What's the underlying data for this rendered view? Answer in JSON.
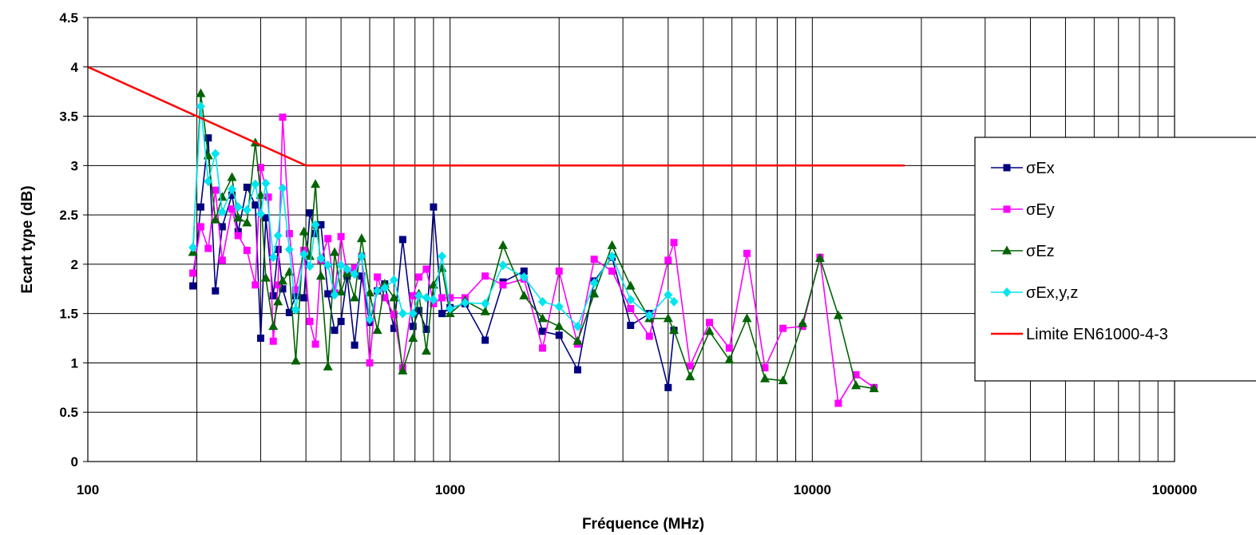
{
  "chart_data": {
    "type": "line",
    "title": "",
    "xlabel": "Fréquence (MHz)",
    "ylabel": "Ecart type (dB)",
    "x_scale": "log",
    "xlim": [
      100,
      100000
    ],
    "ylim": [
      0,
      4.5
    ],
    "x_ticks": [
      "100",
      "1000",
      "10000",
      "100000"
    ],
    "y_ticks": [
      "0",
      "0.5",
      "1",
      "1.5",
      "2",
      "2.5",
      "3",
      "3.5",
      "4",
      "4.5"
    ],
    "grid": true,
    "legend_position": "right",
    "series": [
      {
        "name": "σEx",
        "color": "#000080",
        "marker": "square",
        "x": [
          195,
          205,
          215,
          225,
          235,
          250,
          260,
          275,
          290,
          300,
          310,
          325,
          335,
          345,
          360,
          375,
          395,
          410,
          425,
          440,
          460,
          480,
          500,
          520,
          545,
          570,
          600,
          630,
          660,
          700,
          740,
          790,
          820,
          860,
          900,
          950,
          1000,
          1100,
          1250,
          1400,
          1600,
          1800,
          2000,
          2250,
          2500,
          2800,
          3150,
          3550,
          4000,
          4150
        ],
        "y": [
          1.78,
          2.58,
          3.28,
          1.73,
          2.38,
          2.7,
          2.33,
          2.78,
          2.6,
          1.25,
          2.47,
          1.68,
          2.15,
          1.75,
          1.51,
          1.68,
          1.66,
          2.52,
          2.31,
          2.4,
          1.7,
          1.33,
          1.42,
          1.88,
          1.18,
          1.88,
          1.41,
          1.73,
          1.8,
          1.35,
          2.25,
          1.37,
          1.53,
          1.34,
          2.58,
          1.5,
          1.56,
          1.6,
          1.23,
          1.82,
          1.93,
          1.32,
          1.28,
          0.93,
          1.83,
          2.07,
          1.38,
          1.5,
          0.75,
          1.33
        ]
      },
      {
        "name": "σEy",
        "color": "#ff00ff",
        "marker": "square",
        "x": [
          195,
          205,
          215,
          225,
          235,
          250,
          260,
          275,
          290,
          300,
          315,
          325,
          335,
          345,
          360,
          375,
          395,
          410,
          425,
          440,
          460,
          480,
          500,
          520,
          545,
          570,
          600,
          630,
          660,
          700,
          740,
          790,
          820,
          860,
          900,
          950,
          1000,
          1100,
          1250,
          1400,
          1600,
          1800,
          2000,
          2250,
          2500,
          2800,
          3150,
          3550,
          4000,
          4150,
          4600,
          5200,
          5900,
          6600,
          7400,
          8300,
          9400,
          10500,
          11800,
          13200,
          14800
        ],
        "y": [
          1.91,
          2.38,
          2.16,
          2.75,
          2.04,
          2.56,
          2.29,
          2.14,
          1.79,
          2.98,
          2.68,
          1.22,
          1.79,
          3.49,
          2.31,
          1.74,
          2.14,
          1.42,
          1.19,
          2.04,
          2.26,
          1.71,
          2.28,
          1.91,
          1.96,
          2.08,
          1.0,
          1.87,
          1.66,
          1.49,
          0.95,
          1.68,
          1.87,
          1.95,
          1.6,
          1.66,
          1.66,
          1.66,
          1.88,
          1.79,
          1.85,
          1.15,
          1.93,
          1.19,
          2.05,
          1.93,
          1.55,
          1.27,
          2.04,
          2.22,
          0.97,
          1.41,
          1.15,
          2.11,
          0.95,
          1.35,
          1.37,
          2.07,
          0.59,
          0.88,
          0.75
        ]
      },
      {
        "name": "σEz",
        "color": "#006400",
        "marker": "triangle",
        "x": [
          195,
          205,
          215,
          225,
          235,
          250,
          260,
          275,
          290,
          300,
          310,
          325,
          335,
          345,
          360,
          375,
          395,
          410,
          425,
          440,
          460,
          480,
          500,
          520,
          545,
          570,
          600,
          630,
          660,
          700,
          740,
          790,
          820,
          860,
          900,
          950,
          1000,
          1100,
          1250,
          1400,
          1600,
          1800,
          2000,
          2250,
          2500,
          2800,
          3150,
          3550,
          4000,
          4150,
          4600,
          5200,
          5900,
          6600,
          7400,
          8300,
          9400,
          10500,
          11800,
          13200,
          14800
        ],
        "y": [
          2.12,
          3.73,
          3.1,
          2.45,
          2.68,
          2.88,
          2.47,
          2.42,
          3.23,
          2.7,
          1.86,
          1.37,
          1.62,
          1.83,
          1.92,
          1.02,
          2.33,
          2.08,
          2.81,
          1.88,
          0.96,
          2.12,
          1.72,
          1.91,
          1.66,
          2.26,
          1.71,
          1.33,
          1.8,
          1.66,
          0.92,
          1.25,
          1.7,
          1.12,
          1.79,
          1.96,
          1.5,
          1.63,
          1.52,
          2.19,
          1.68,
          1.45,
          1.37,
          1.22,
          1.7,
          2.19,
          1.78,
          1.45,
          1.45,
          1.33,
          0.86,
          1.32,
          1.03,
          1.45,
          0.84,
          0.82,
          1.4,
          2.06,
          1.48,
          0.77,
          0.74
        ]
      },
      {
        "name": "σEx,y,z",
        "color": "#00e5ee",
        "marker": "diamond",
        "x": [
          195,
          205,
          215,
          225,
          235,
          250,
          260,
          275,
          290,
          300,
          310,
          325,
          335,
          345,
          360,
          375,
          395,
          410,
          425,
          440,
          460,
          480,
          500,
          520,
          545,
          570,
          600,
          630,
          660,
          700,
          740,
          790,
          820,
          860,
          900,
          950,
          1000,
          1100,
          1250,
          1400,
          1600,
          1800,
          2000,
          2250,
          2500,
          2800,
          3150,
          3550,
          4000,
          4150
        ],
        "y": [
          2.17,
          3.6,
          2.84,
          3.12,
          2.53,
          2.76,
          2.58,
          2.55,
          2.81,
          2.51,
          2.82,
          2.07,
          2.29,
          2.77,
          2.15,
          1.54,
          2.1,
          1.98,
          2.4,
          2.06,
          1.99,
          1.69,
          1.99,
          1.95,
          1.9,
          2.08,
          1.44,
          1.73,
          1.76,
          1.84,
          1.5,
          1.5,
          1.68,
          1.66,
          1.64,
          2.08,
          1.55,
          1.61,
          1.6,
          1.99,
          1.87,
          1.62,
          1.57,
          1.37,
          1.81,
          2.08,
          1.64,
          1.48,
          1.69,
          1.62
        ]
      },
      {
        "name": "Limite EN61000-4-3",
        "color": "#ff0000",
        "marker": "none",
        "x": [
          100,
          400,
          18000
        ],
        "y": [
          4,
          3,
          3
        ]
      }
    ]
  }
}
